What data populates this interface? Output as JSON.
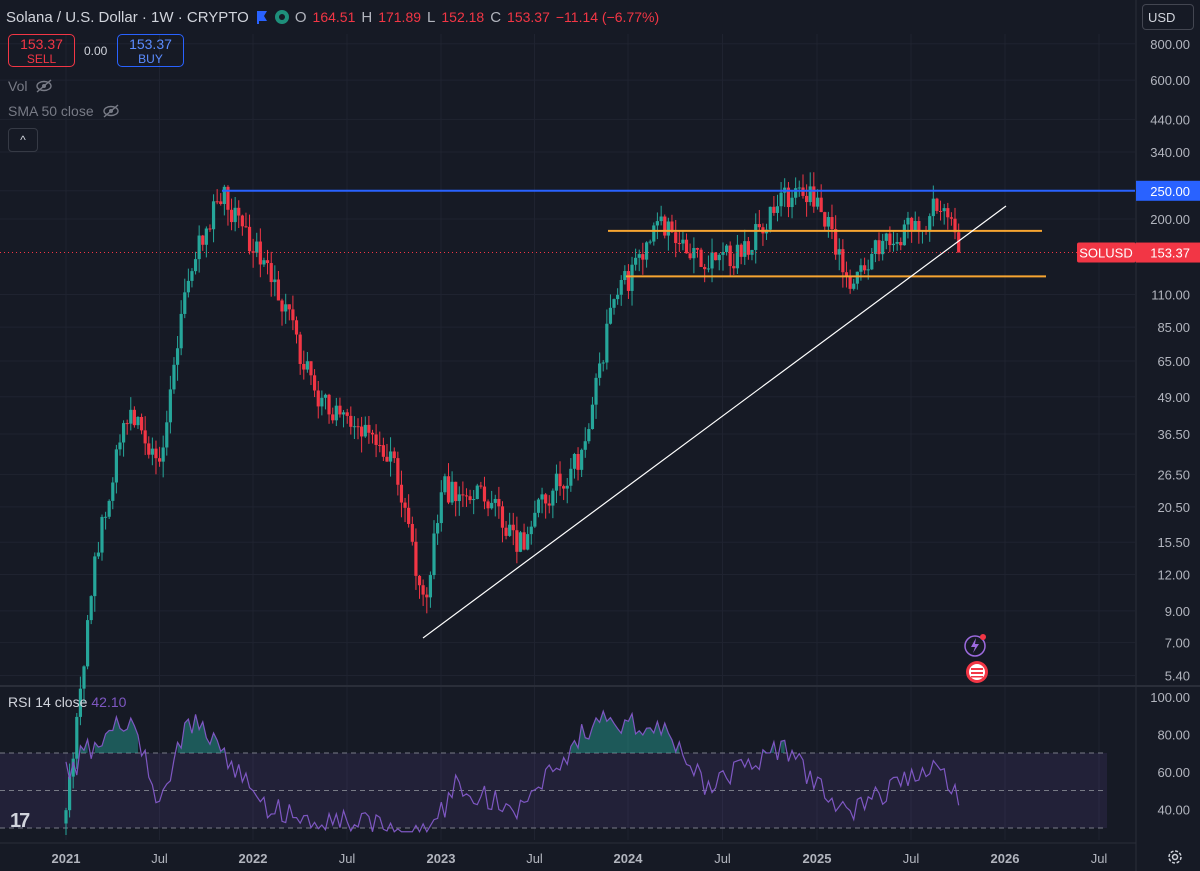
{
  "header": {
    "symbol_title": "Solana / U.S. Dollar · 1W · CRYPTO",
    "o_label": "O",
    "o_value": "164.51",
    "h_label": "H",
    "h_value": "171.89",
    "l_label": "L",
    "l_value": "152.18",
    "c_label": "C",
    "c_value": "153.37",
    "change": "−11.14 (−6.77%)"
  },
  "trade": {
    "sell_price": "153.37",
    "sell_label": "SELL",
    "spread": "0.00",
    "buy_price": "153.37",
    "buy_label": "BUY"
  },
  "indicators": {
    "vol": "Vol",
    "sma": "SMA 50 close",
    "collapse": "^"
  },
  "currency": "USD",
  "rsi": {
    "label": "RSI 14 close",
    "value": "42.10"
  },
  "logo": "17",
  "colors": {
    "up": "#26a69a",
    "down": "#f23645",
    "blue_line": "#2962ff",
    "orange": "#f7a531",
    "rsi": "#7e57c2",
    "trend": "#ffffff"
  },
  "icons": [
    "flag-icon",
    "eye-off-icon",
    "chevron-up-icon",
    "gear-icon",
    "lightning-icon",
    "us-flag-icon",
    "chart-logo-icon"
  ],
  "chart_data": {
    "type": "candlestick",
    "scale": "log",
    "y_ticks": [
      800,
      600,
      440,
      340,
      250,
      200,
      153.37,
      110,
      85,
      65,
      49,
      36.5,
      26.5,
      20.5,
      15.5,
      12,
      9,
      7,
      5.4
    ],
    "y_tick_labels": [
      "800.00",
      "600.00",
      "440.00",
      "340.00",
      "250.00",
      "200.00",
      "153.37",
      "110.00",
      "85.00",
      "65.00",
      "49.00",
      "36.50",
      "26.50",
      "20.50",
      "15.50",
      "12.00",
      "9.00",
      "7.00",
      "5.40"
    ],
    "x_tick_labels": [
      "2021",
      "Jul",
      "2022",
      "Jul",
      "2023",
      "Jul",
      "2024",
      "Jul",
      "2025",
      "Jul",
      "2026",
      "Jul"
    ],
    "price_label_symbol": "SOLUSD",
    "price_label_value": "153.37",
    "horizontal_line_label": "250.00",
    "key_points": [
      {
        "date": "2021-01",
        "close": 1.8
      },
      {
        "date": "2021-03",
        "close": 15
      },
      {
        "date": "2021-05",
        "close": 45
      },
      {
        "date": "2021-07",
        "close": 28
      },
      {
        "date": "2021-09",
        "close": 140
      },
      {
        "date": "2021-11",
        "close": 250
      },
      {
        "date": "2022-01",
        "close": 160
      },
      {
        "date": "2022-03",
        "close": 100
      },
      {
        "date": "2022-05",
        "close": 50
      },
      {
        "date": "2022-07",
        "close": 40
      },
      {
        "date": "2022-10",
        "close": 30
      },
      {
        "date": "2022-12",
        "close": 9
      },
      {
        "date": "2023-01",
        "close": 24
      },
      {
        "date": "2023-04",
        "close": 22
      },
      {
        "date": "2023-06",
        "close": 15
      },
      {
        "date": "2023-08",
        "close": 23
      },
      {
        "date": "2023-10",
        "close": 30
      },
      {
        "date": "2023-12",
        "close": 100
      },
      {
        "date": "2024-03",
        "close": 195
      },
      {
        "date": "2024-05",
        "close": 145
      },
      {
        "date": "2024-08",
        "close": 150
      },
      {
        "date": "2024-11",
        "close": 240
      },
      {
        "date": "2025-01",
        "close": 230
      },
      {
        "date": "2025-03",
        "close": 125
      },
      {
        "date": "2025-05",
        "close": 165
      },
      {
        "date": "2025-08",
        "close": 200
      },
      {
        "date": "2025-09",
        "close": 240
      },
      {
        "date": "2025-10",
        "close": 153.37
      }
    ],
    "annotations": {
      "resistance": 250,
      "range_high": 182,
      "range_low": 127
    },
    "rsi_levels": [
      70,
      50,
      30
    ],
    "rsi_ticks": [
      "100.00",
      "80.00",
      "60.00",
      "40.00"
    ],
    "rsi_key_points": [
      {
        "date": "2021-01",
        "value": 60
      },
      {
        "date": "2021-05",
        "value": 90
      },
      {
        "date": "2021-07",
        "value": 45
      },
      {
        "date": "2021-09",
        "value": 88
      },
      {
        "date": "2021-11",
        "value": 70
      },
      {
        "date": "2022-02",
        "value": 40
      },
      {
        "date": "2022-06",
        "value": 35
      },
      {
        "date": "2022-12",
        "value": 25
      },
      {
        "date": "2023-02",
        "value": 52
      },
      {
        "date": "2023-06",
        "value": 40
      },
      {
        "date": "2023-11",
        "value": 88
      },
      {
        "date": "2024-03",
        "value": 85
      },
      {
        "date": "2024-06",
        "value": 52
      },
      {
        "date": "2024-11",
        "value": 72
      },
      {
        "date": "2025-03",
        "value": 37
      },
      {
        "date": "2025-07",
        "value": 58
      },
      {
        "date": "2025-09",
        "value": 66
      },
      {
        "date": "2025-10",
        "value": 42.1
      }
    ]
  }
}
